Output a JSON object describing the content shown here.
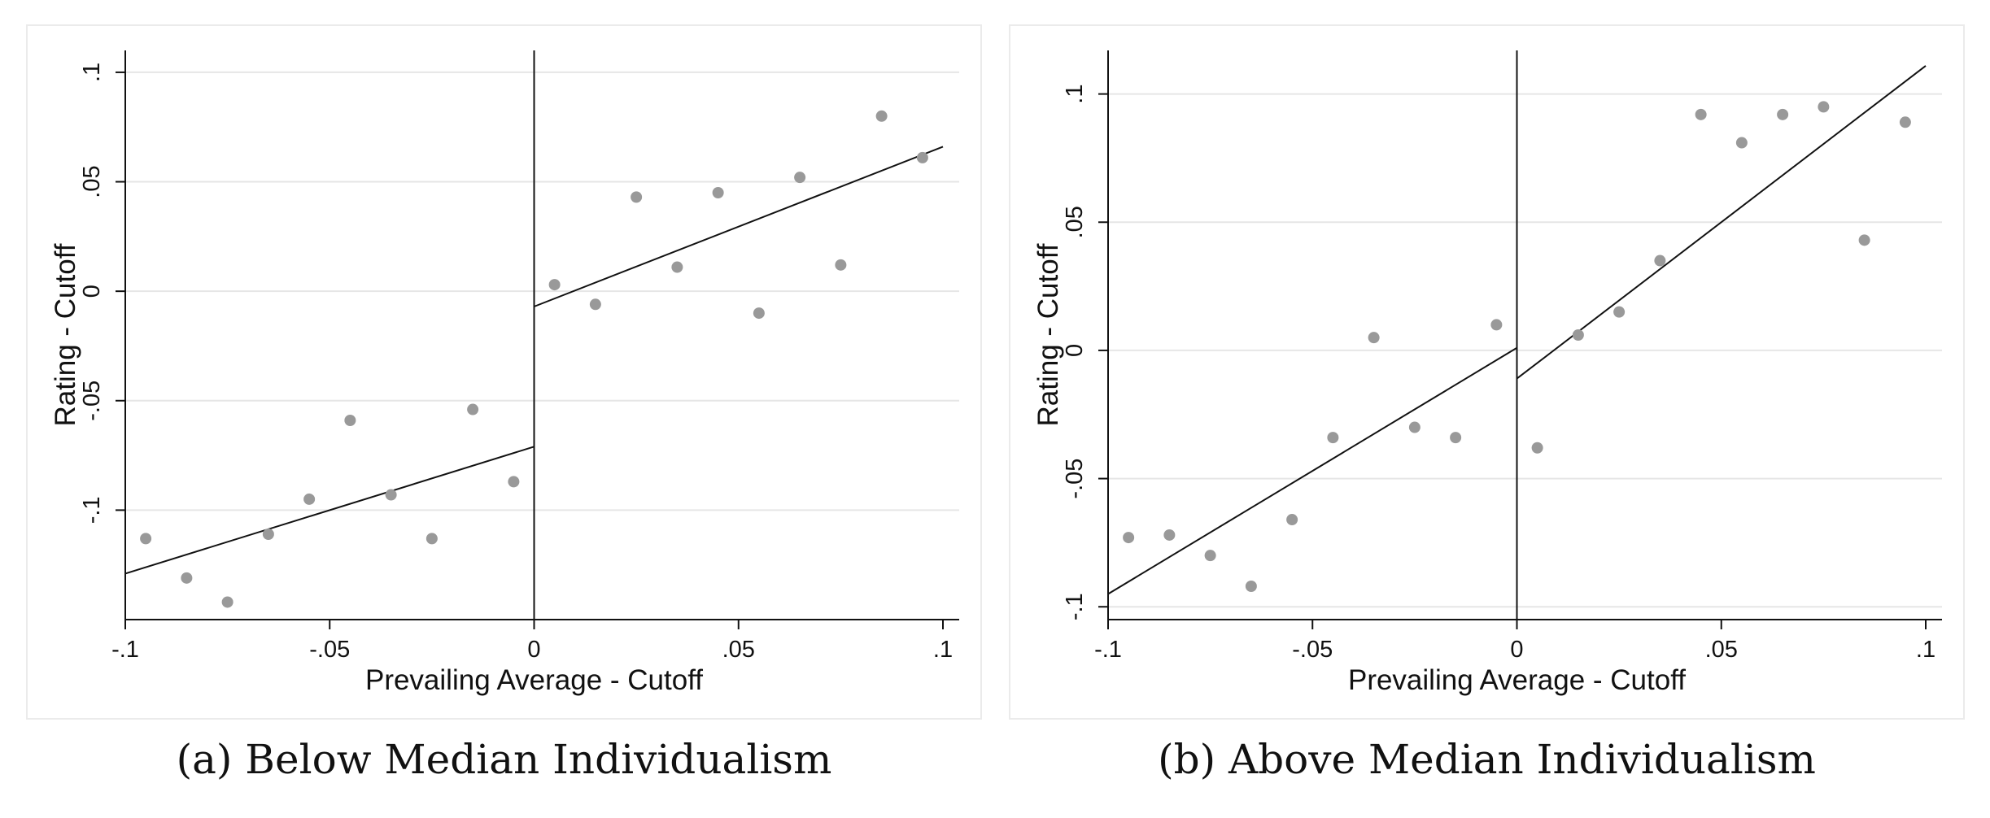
{
  "chart_data": [
    {
      "type": "scatter",
      "xlabel": "Prevailing Average - Cutoff",
      "ylabel": "Rating - Cutoff",
      "xlim": [
        -0.1,
        0.1
      ],
      "ylim": [
        -0.15,
        0.11
      ],
      "xticks": [
        -0.1,
        -0.05,
        0,
        0.05,
        0.1
      ],
      "xtick_labels": [
        "-.1",
        "-.05",
        "0",
        ".05",
        ".1"
      ],
      "yticks": [
        -0.1,
        -0.05,
        0,
        0.05,
        0.1
      ],
      "ytick_labels": [
        "-.1",
        "-.05",
        "0",
        ".05",
        ".1"
      ],
      "grid": true,
      "cutoff": 0,
      "points": [
        {
          "x": -0.095,
          "y": -0.113
        },
        {
          "x": -0.085,
          "y": -0.131
        },
        {
          "x": -0.075,
          "y": -0.142
        },
        {
          "x": -0.065,
          "y": -0.111
        },
        {
          "x": -0.055,
          "y": -0.095
        },
        {
          "x": -0.045,
          "y": -0.059
        },
        {
          "x": -0.035,
          "y": -0.093
        },
        {
          "x": -0.025,
          "y": -0.113
        },
        {
          "x": -0.015,
          "y": -0.054
        },
        {
          "x": -0.005,
          "y": -0.087
        },
        {
          "x": 0.005,
          "y": 0.003
        },
        {
          "x": 0.015,
          "y": -0.006
        },
        {
          "x": 0.025,
          "y": 0.043
        },
        {
          "x": 0.035,
          "y": 0.011
        },
        {
          "x": 0.045,
          "y": 0.045
        },
        {
          "x": 0.055,
          "y": -0.01
        },
        {
          "x": 0.065,
          "y": 0.052
        },
        {
          "x": 0.075,
          "y": 0.012
        },
        {
          "x": 0.085,
          "y": 0.08
        },
        {
          "x": 0.095,
          "y": 0.061
        }
      ],
      "fit_lines": [
        {
          "x": [
            -0.1,
            0
          ],
          "y": [
            -0.129,
            -0.071
          ]
        },
        {
          "x": [
            0,
            0.1
          ],
          "y": [
            -0.007,
            0.066
          ]
        }
      ],
      "caption": "(a) Below Median Individualism"
    },
    {
      "type": "scatter",
      "xlabel": "Prevailing Average - Cutoff",
      "ylabel": "Rating - Cutoff",
      "xlim": [
        -0.1,
        0.1
      ],
      "ylim": [
        -0.105,
        0.117
      ],
      "xticks": [
        -0.1,
        -0.05,
        0,
        0.05,
        0.1
      ],
      "xtick_labels": [
        "-.1",
        "-.05",
        "0",
        ".05",
        ".1"
      ],
      "yticks": [
        -0.1,
        -0.05,
        0,
        0.05,
        0.1
      ],
      "ytick_labels": [
        "-.1",
        "-.05",
        "0",
        ".05",
        ".1"
      ],
      "grid": true,
      "cutoff": 0,
      "points": [
        {
          "x": -0.095,
          "y": -0.073
        },
        {
          "x": -0.085,
          "y": -0.072
        },
        {
          "x": -0.075,
          "y": -0.08
        },
        {
          "x": -0.065,
          "y": -0.092
        },
        {
          "x": -0.055,
          "y": -0.066
        },
        {
          "x": -0.045,
          "y": -0.034
        },
        {
          "x": -0.035,
          "y": 0.005
        },
        {
          "x": -0.025,
          "y": -0.03
        },
        {
          "x": -0.015,
          "y": -0.034
        },
        {
          "x": -0.005,
          "y": 0.01
        },
        {
          "x": 0.005,
          "y": -0.038
        },
        {
          "x": 0.015,
          "y": 0.006
        },
        {
          "x": 0.025,
          "y": 0.015
        },
        {
          "x": 0.035,
          "y": 0.035
        },
        {
          "x": 0.045,
          "y": 0.092
        },
        {
          "x": 0.055,
          "y": 0.081
        },
        {
          "x": 0.065,
          "y": 0.092
        },
        {
          "x": 0.075,
          "y": 0.095
        },
        {
          "x": 0.085,
          "y": 0.043
        },
        {
          "x": 0.095,
          "y": 0.089
        }
      ],
      "fit_lines": [
        {
          "x": [
            -0.1,
            0
          ],
          "y": [
            -0.095,
            0.001
          ]
        },
        {
          "x": [
            0,
            0.1
          ],
          "y": [
            -0.011,
            0.111
          ]
        }
      ],
      "caption": "(b) Above Median Individualism"
    }
  ]
}
